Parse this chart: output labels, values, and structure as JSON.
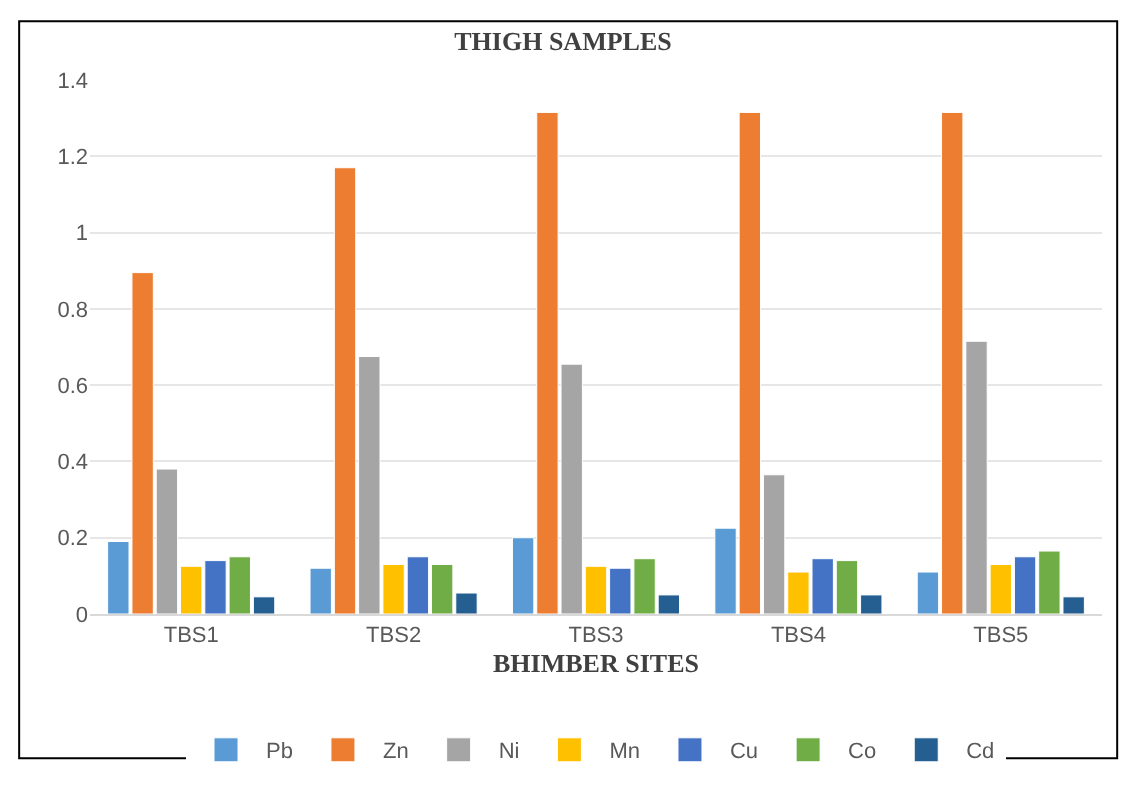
{
  "chart_data": {
    "type": "bar",
    "title": "THIGH SAMPLES",
    "xlabel": "BHIMBER SITES",
    "categories": [
      "TBS1",
      "TBS2",
      "TBS3",
      "TBS4",
      "TBS5"
    ],
    "series": [
      {
        "name": "Pb",
        "color": "#5b9bd5",
        "values": [
          0.19,
          0.12,
          0.2,
          0.225,
          0.11
        ]
      },
      {
        "name": "Zn",
        "color": "#ed7d31",
        "values": [
          0.895,
          1.17,
          1.315,
          1.315,
          1.315
        ]
      },
      {
        "name": "Ni",
        "color": "#a5a5a5",
        "values": [
          0.38,
          0.675,
          0.655,
          0.365,
          0.715
        ]
      },
      {
        "name": "Mn",
        "color": "#ffc000",
        "values": [
          0.125,
          0.13,
          0.125,
          0.11,
          0.13
        ]
      },
      {
        "name": "Cu",
        "color": "#4472c4",
        "values": [
          0.14,
          0.15,
          0.12,
          0.145,
          0.15
        ]
      },
      {
        "name": "Co",
        "color": "#70ad47",
        "values": [
          0.15,
          0.13,
          0.145,
          0.14,
          0.165
        ]
      },
      {
        "name": "Cd",
        "color": "#255e91",
        "values": [
          0.045,
          0.055,
          0.05,
          0.05,
          0.045
        ]
      }
    ],
    "ylim": [
      0,
      1.4
    ],
    "yticks": [
      0,
      {
        "value": 0.2,
        "label": "0.2"
      },
      {
        "value": 0.4,
        "label": "0.4"
      },
      {
        "value": 0.6,
        "label": "0.6"
      },
      {
        "value": 0.8,
        "label": "0.8"
      },
      1,
      {
        "value": 1.2,
        "label": "1.2"
      },
      {
        "value": 1.4,
        "label": "1.4"
      }
    ],
    "grid": "y",
    "legend": "bottom"
  }
}
